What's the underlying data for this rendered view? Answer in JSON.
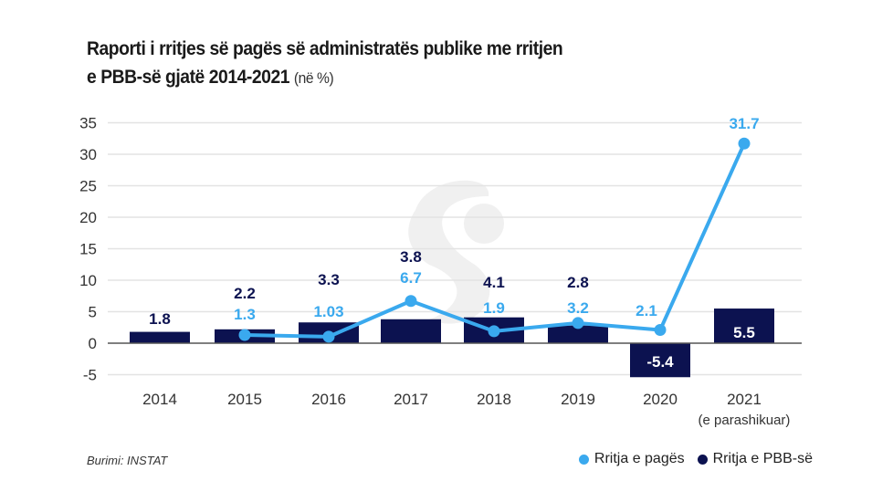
{
  "header": {
    "title_line1": "Raporti i rritjes së pagës së administratës publike me rritjen",
    "title_line2": "e PBB-së gjatë 2014-2021",
    "title_unit": "(në %)"
  },
  "footer": {
    "source": "Burimi: INSTAT"
  },
  "colors": {
    "wage_growth": "#3aa9ee",
    "gdp_growth": "#0c1250",
    "gridline": "#e3e3e3",
    "axis": "#555555"
  },
  "chart_data": {
    "type": "bar",
    "title": "Raporti i rritjes së pagës së administratës publike me rritjen e PBB-së gjatë 2014-2021 (në %)",
    "xlabel": "",
    "ylabel": "",
    "categories": [
      "2014",
      "2015",
      "2016",
      "2017",
      "2018",
      "2019",
      "2020",
      "2021"
    ],
    "category_sublabels": [
      "",
      "",
      "",
      "",
      "",
      "",
      "",
      "(e parashikuar)"
    ],
    "yticks": [
      -5,
      0,
      5,
      10,
      15,
      20,
      25,
      30,
      35
    ],
    "ylim": [
      -5,
      35
    ],
    "grid": true,
    "legend_position": "bottom-right",
    "series": [
      {
        "name": "Rritja e PBB-së",
        "type": "bar",
        "values": [
          1.8,
          2.2,
          3.3,
          3.8,
          4.1,
          2.8,
          -5.4,
          5.5
        ],
        "labels": [
          "1.8",
          "2.2",
          "3.3",
          "3.8",
          "4.1",
          "2.8",
          "-5.4",
          "5.5"
        ]
      },
      {
        "name": "Rritja e pagës",
        "type": "line",
        "values": [
          null,
          1.3,
          1.03,
          6.7,
          1.9,
          3.2,
          2.1,
          31.7
        ],
        "labels": [
          "",
          "1.3",
          "1.03",
          "6.7",
          "1.9",
          "3.2",
          "2.1",
          "31.7"
        ]
      }
    ]
  }
}
